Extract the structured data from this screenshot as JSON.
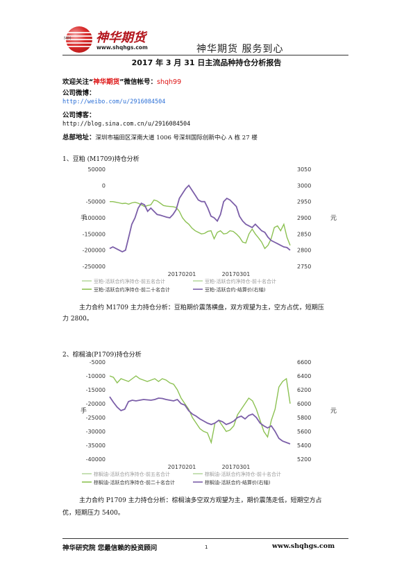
{
  "header": {
    "logo_text": "神华期货",
    "logo_url": "www.shqhgs.com",
    "logo_mark": "MM",
    "slogan": "神华期货   服务到心"
  },
  "title": "2017 年 3 月 31 日主流品种持仓分析报告",
  "contact": {
    "wechat_prefix": "欢迎关注“",
    "wechat_brand": "神华期货",
    "wechat_mid": "”微信帐号：",
    "wechat_account": "shqh99",
    "weibo_label": "公司微博：",
    "weibo_url": "http://weibo.com/u/2916084504",
    "blog_label": "公司博客：",
    "blog_url": "http://blog.sina.com.cn/u/2916084504",
    "address_label": "总部地址：",
    "address": "深圳市福田区深南大道 1006 号深圳国际创新中心 A 栋 27 楼"
  },
  "sections": [
    {
      "heading": "1、豆粕 (M1709)持仓分析",
      "analysis": "主力合约 M1709 主力持仓分析：豆粕期价震荡横盘，双方观望为主，空方占优，短期压",
      "analysis_cont": "力 2800。"
    },
    {
      "heading": "2、棕榈油(P1709)持仓分析",
      "analysis": "主力合约 P1709 主力持仓分析：棕榈油多空双方观望为主，期价震荡走低，短期空方占",
      "analysis_cont": "优，短期压力 5400。"
    }
  ],
  "chart_data": [
    {
      "type": "line",
      "left_axis_label": "手",
      "right_axis_label": "元",
      "left_ylim": [
        -250000,
        50000
      ],
      "left_ticks": [
        "50000",
        "0",
        "-50000",
        "-100000",
        "-150000",
        "-200000",
        "-250000"
      ],
      "right_ylim": [
        2750,
        3050
      ],
      "right_ticks": [
        "3050",
        "3000",
        "2950",
        "2900",
        "2850",
        "2800",
        "2750"
      ],
      "x_ticks": [
        "20170201",
        "20170301"
      ],
      "legend": [
        "豆粕-活跃合约净持仓-前五名合计",
        "豆粕-活跃合约净持仓-前十名合计",
        "豆粕-活跃合约净持仓-前二十名合计",
        "豆粕-活跃合约-结算价(右轴)"
      ],
      "colors": {
        "green": "#8cc152",
        "purple": "#7b5ea8",
        "light_green": "#b8d8a0"
      },
      "series": [
        {
          "name": "豆粕-活跃合约净持仓-前二十名合计",
          "axis": "left",
          "values": [
            -50000,
            -50000,
            -52000,
            -54000,
            -56000,
            -55000,
            -58000,
            -54000,
            -52000,
            -55000,
            -60000,
            -65000,
            -62000,
            -60000,
            -45000,
            -48000,
            -55000,
            -62000,
            -64000,
            -65000,
            -66000,
            -68000,
            -80000,
            -100000,
            -112000,
            -120000,
            -132000,
            -140000,
            -145000,
            -150000,
            -148000,
            -142000,
            -140000,
            -165000,
            -145000,
            -140000,
            -150000,
            -148000,
            -140000,
            -142000,
            -150000,
            -160000,
            -175000,
            -178000,
            -150000,
            -135000,
            -150000,
            -162000,
            -175000,
            -195000,
            -185000,
            -165000,
            -130000,
            -125000,
            -140000,
            -120000,
            -160000,
            -185000
          ]
        },
        {
          "name": "豆粕-活跃合约-结算价(右轴)",
          "axis": "right",
          "values": [
            2805,
            2810,
            2805,
            2800,
            2795,
            2800,
            2840,
            2880,
            2900,
            2930,
            2945,
            2940,
            2920,
            2930,
            2920,
            2910,
            2908,
            2905,
            2902,
            2900,
            2910,
            2925,
            2960,
            2975,
            2990,
            3000,
            2985,
            2970,
            2955,
            2950,
            2950,
            2930,
            2905,
            2900,
            2890,
            2910,
            2950,
            2960,
            2955,
            2945,
            2935,
            2905,
            2890,
            2880,
            2875,
            2870,
            2880,
            2870,
            2860,
            2855,
            2840,
            2830,
            2825,
            2820,
            2815,
            2810,
            2808,
            2800
          ]
        }
      ]
    },
    {
      "type": "line",
      "left_axis_label": "手",
      "right_axis_label": "元",
      "left_ylim": [
        -40000,
        -5000
      ],
      "left_ticks": [
        "-5000",
        "-10000",
        "-15000",
        "-20000",
        "-25000",
        "-30000",
        "-35000",
        "-40000"
      ],
      "right_ylim": [
        5200,
        6600
      ],
      "right_ticks": [
        "6600",
        "6400",
        "6200",
        "6000",
        "5800",
        "5600",
        "5400",
        "5200"
      ],
      "x_ticks": [
        "20170201",
        "20170301"
      ],
      "legend": [
        "棕榈油-活跃合约净持仓-前五名合计",
        "棕榈油-活跃合约净持仓-前十名合计",
        "棕榈油-活跃合约净持仓-前二十名合计",
        "棕榈油-活跃合约-结算价(右轴)"
      ],
      "colors": {
        "green": "#8cc152",
        "purple": "#7b5ea8",
        "light_green": "#b8d8a0"
      },
      "series": [
        {
          "name": "棕榈油-活跃合约净持仓-前二十名合计",
          "axis": "left",
          "values": [
            -10000,
            -10500,
            -12500,
            -11000,
            -11500,
            -12000,
            -11000,
            -10000,
            -11000,
            -11500,
            -12000,
            -11500,
            -11000,
            -12000,
            -11000,
            -11500,
            -12500,
            -13000,
            -15000,
            -18000,
            -20000,
            -22000,
            -25000,
            -27000,
            -29000,
            -30000,
            -30500,
            -34000,
            -27000,
            -26000,
            -28000,
            -30000,
            -29500,
            -28000,
            -24000,
            -22000,
            -20000,
            -18000,
            -19000,
            -22000,
            -26000,
            -30000,
            -32000,
            -26000,
            -22000,
            -14000,
            -12000,
            -11000,
            -20000
          ]
        },
        {
          "name": "棕榈油-活跃合约-结算价(右轴)",
          "axis": "right",
          "values": [
            6100,
            6020,
            5950,
            5900,
            5920,
            6030,
            6050,
            6040,
            6050,
            6060,
            6055,
            6050,
            6060,
            6080,
            6075,
            6060,
            6050,
            6040,
            6060,
            6000,
            5980,
            5900,
            5850,
            5820,
            5780,
            5750,
            5720,
            5700,
            5720,
            5760,
            5740,
            5700,
            5720,
            5750,
            5800,
            5820,
            5780,
            5830,
            5850,
            5800,
            5720,
            5680,
            5650,
            5680,
            5600,
            5500,
            5460,
            5440,
            5420
          ]
        }
      ]
    }
  ],
  "footer": {
    "left": "神华研究院   您最信赖的投资顾问",
    "page": "1",
    "right": "www.shqhgs.com"
  }
}
